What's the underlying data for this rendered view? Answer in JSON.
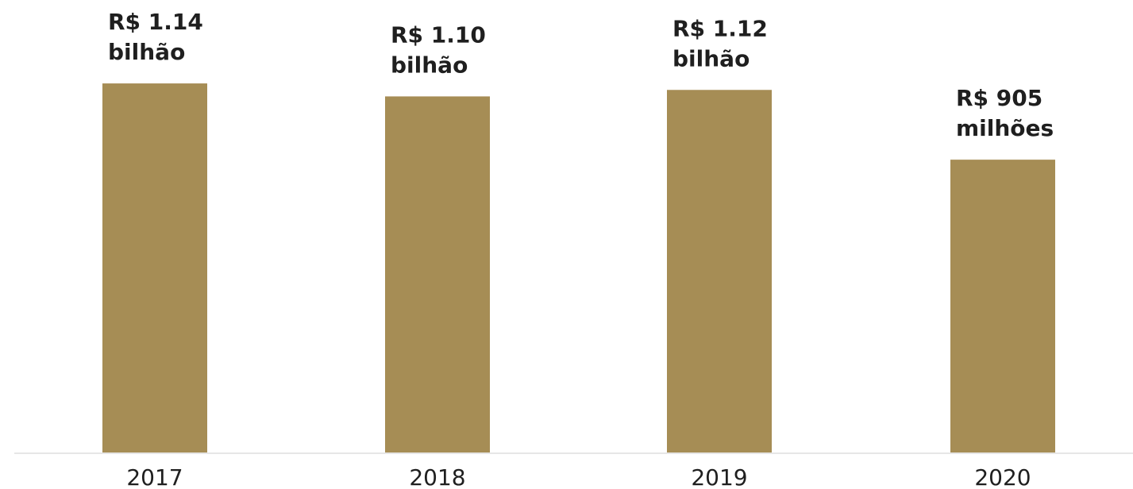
{
  "colors": {
    "bar": "#a68d55",
    "baseline": "#e6e6e6",
    "text": "#1f1f1f",
    "background": "#ffffff"
  },
  "chart_data": {
    "type": "bar",
    "categories": [
      "2017",
      "2018",
      "2019",
      "2020"
    ],
    "values": [
      1140,
      1100,
      1120,
      905
    ],
    "value_unit": "R$ milhões",
    "data_labels": [
      [
        "R$ 1.14",
        "bilhão"
      ],
      [
        "R$ 1.10",
        "bilhão"
      ],
      [
        "R$ 1.12",
        "bilhão"
      ],
      [
        "R$ 905",
        "milhões"
      ]
    ],
    "ylim": [
      0,
      1150
    ],
    "grid": false,
    "legend": "none",
    "title": "",
    "xlabel": "",
    "ylabel": ""
  }
}
